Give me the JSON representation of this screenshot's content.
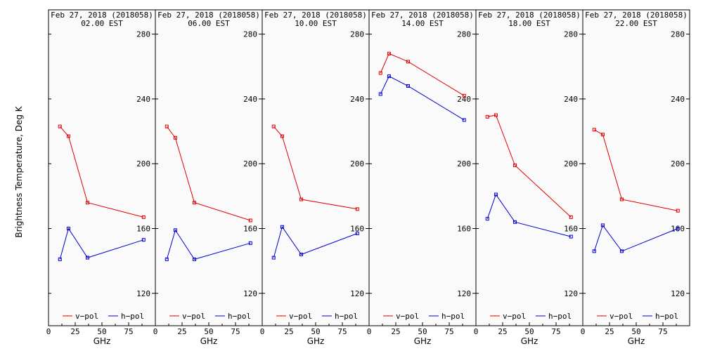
{
  "ylabel": "Brightness Temperature, Deg K",
  "xlabel": "GHz",
  "legend": {
    "v": "v−pol",
    "h": "h−pol"
  },
  "colors": {
    "v": "#e00000",
    "h": "#0000d0"
  },
  "chart_data": [
    {
      "type": "line",
      "title": "Feb 27, 2018 (2018058)",
      "subtitle": "02.00 EST",
      "x": [
        10.7,
        18.7,
        36.5,
        89.0
      ],
      "xlim": [
        0,
        100
      ],
      "ylim": [
        100,
        295
      ],
      "xticks": [
        0,
        25,
        50,
        75
      ],
      "yticks": [
        120,
        160,
        200,
        240,
        280
      ],
      "series": [
        {
          "name": "v−pol",
          "values": [
            223,
            217,
            176,
            167
          ]
        },
        {
          "name": "h−pol",
          "values": [
            141,
            160,
            142,
            153
          ]
        }
      ]
    },
    {
      "type": "line",
      "title": "Feb 27, 2018 (2018058)",
      "subtitle": "06.00 EST",
      "x": [
        10.7,
        18.7,
        36.5,
        89.0
      ],
      "xlim": [
        0,
        100
      ],
      "ylim": [
        100,
        295
      ],
      "xticks": [
        0,
        25,
        50,
        75
      ],
      "yticks": [
        120,
        160,
        200,
        240,
        280
      ],
      "series": [
        {
          "name": "v−pol",
          "values": [
            223,
            216,
            176,
            165
          ]
        },
        {
          "name": "h−pol",
          "values": [
            141,
            159,
            141,
            151
          ]
        }
      ]
    },
    {
      "type": "line",
      "title": "Feb 27, 2018 (2018058)",
      "subtitle": "10.00 EST",
      "x": [
        10.7,
        18.7,
        36.5,
        89.0
      ],
      "xlim": [
        0,
        100
      ],
      "ylim": [
        100,
        295
      ],
      "xticks": [
        0,
        25,
        50,
        75
      ],
      "yticks": [
        120,
        160,
        200,
        240,
        280
      ],
      "series": [
        {
          "name": "v−pol",
          "values": [
            223,
            217,
            178,
            172
          ]
        },
        {
          "name": "h−pol",
          "values": [
            142,
            161,
            144,
            157
          ]
        }
      ]
    },
    {
      "type": "line",
      "title": "Feb 27, 2018 (2018058)",
      "subtitle": "14.00 EST",
      "x": [
        10.7,
        18.7,
        36.5,
        89.0
      ],
      "xlim": [
        0,
        100
      ],
      "ylim": [
        100,
        295
      ],
      "xticks": [
        0,
        25,
        50,
        75
      ],
      "yticks": [
        120,
        160,
        200,
        240,
        280
      ],
      "series": [
        {
          "name": "v−pol",
          "values": [
            256,
            268,
            263,
            242
          ]
        },
        {
          "name": "h−pol",
          "values": [
            243,
            254,
            248,
            227
          ]
        }
      ]
    },
    {
      "type": "line",
      "title": "Feb 27, 2018 (2018058)",
      "subtitle": "18.00 EST",
      "x": [
        10.7,
        18.7,
        36.5,
        89.0
      ],
      "xlim": [
        0,
        100
      ],
      "ylim": [
        100,
        295
      ],
      "xticks": [
        0,
        25,
        50,
        75
      ],
      "yticks": [
        120,
        160,
        200,
        240,
        280
      ],
      "series": [
        {
          "name": "v−pol",
          "values": [
            229,
            230,
            199,
            167
          ]
        },
        {
          "name": "h−pol",
          "values": [
            166,
            181,
            164,
            155
          ]
        }
      ]
    },
    {
      "type": "line",
      "title": "Feb 27, 2018 (2018058)",
      "subtitle": "22.00 EST",
      "x": [
        10.7,
        18.7,
        36.5,
        89.0
      ],
      "xlim": [
        0,
        100
      ],
      "ylim": [
        100,
        295
      ],
      "xticks": [
        0,
        25,
        50,
        75
      ],
      "yticks": [
        120,
        160,
        200,
        240,
        280
      ],
      "series": [
        {
          "name": "v−pol",
          "values": [
            221,
            218,
            178,
            171
          ]
        },
        {
          "name": "h−pol",
          "values": [
            146,
            162,
            146,
            160
          ]
        }
      ]
    }
  ]
}
